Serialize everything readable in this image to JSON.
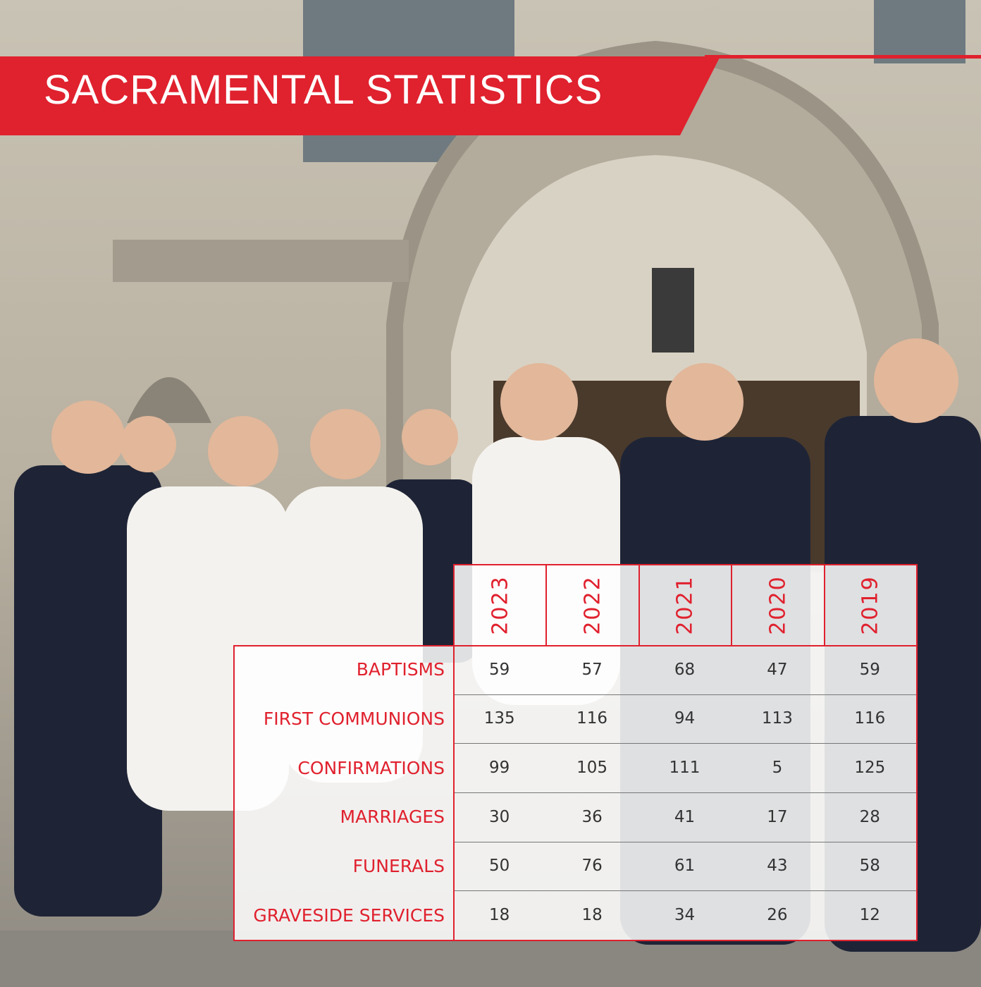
{
  "title": "SACRAMENTAL STATISTICS",
  "table": {
    "columns": [
      "2023",
      "2022",
      "2021",
      "2020",
      "2019"
    ],
    "rows": [
      {
        "label": "BAPTISMS",
        "values": [
          59,
          57,
          68,
          47,
          59
        ]
      },
      {
        "label": "FIRST COMMUNIONS",
        "values": [
          135,
          116,
          94,
          113,
          116
        ]
      },
      {
        "label": "CONFIRMATIONS",
        "values": [
          99,
          105,
          111,
          5,
          125
        ]
      },
      {
        "label": "MARRIAGES",
        "values": [
          30,
          36,
          41,
          17,
          28
        ]
      },
      {
        "label": "FUNERALS",
        "values": [
          50,
          76,
          61,
          43,
          58
        ]
      },
      {
        "label": "GRAVESIDE SERVICES",
        "values": [
          18,
          18,
          34,
          26,
          12
        ]
      }
    ]
  }
}
